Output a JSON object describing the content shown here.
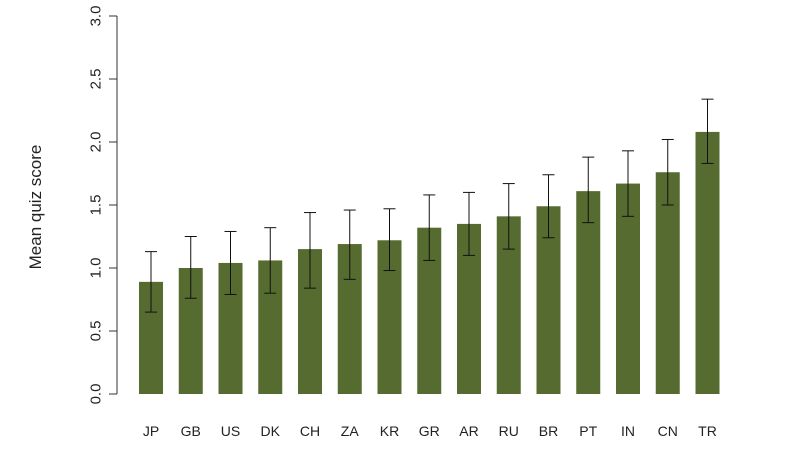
{
  "chart_data": {
    "type": "bar",
    "title": "",
    "xlabel": "",
    "ylabel": "Mean quiz score",
    "ylim": [
      0,
      3
    ],
    "yticks": [
      0,
      0.5,
      1,
      1.5,
      2,
      2.5,
      3
    ],
    "ytick_labels": [
      "0.0",
      "0.5",
      "1.0",
      "1.5",
      "2.0",
      "2.5",
      "3.0"
    ],
    "categories": [
      "JP",
      "GB",
      "US",
      "DK",
      "CH",
      "ZA",
      "KR",
      "GR",
      "AR",
      "RU",
      "BR",
      "PT",
      "IN",
      "CN",
      "TR"
    ],
    "values": [
      0.89,
      1.0,
      1.04,
      1.06,
      1.15,
      1.19,
      1.22,
      1.32,
      1.35,
      1.41,
      1.49,
      1.61,
      1.67,
      1.76,
      2.08
    ],
    "error_low": [
      0.65,
      0.76,
      0.79,
      0.8,
      0.84,
      0.91,
      0.98,
      1.06,
      1.1,
      1.15,
      1.24,
      1.36,
      1.41,
      1.5,
      1.83
    ],
    "error_high": [
      1.13,
      1.25,
      1.29,
      1.32,
      1.44,
      1.46,
      1.47,
      1.58,
      1.6,
      1.67,
      1.74,
      1.88,
      1.93,
      2.02,
      2.34
    ],
    "grid": false,
    "legend": "none",
    "bar_color": "#556b2f",
    "error_bar_color": "#111111",
    "axis_color": "#333333"
  }
}
